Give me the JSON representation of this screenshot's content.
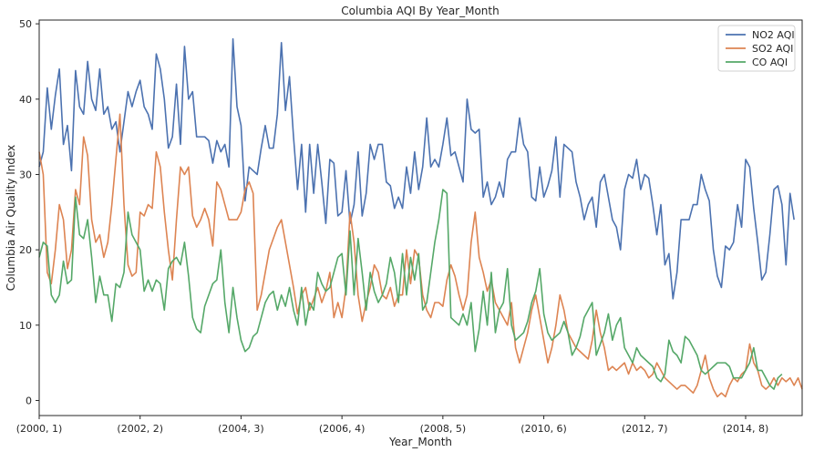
{
  "chart_data": {
    "type": "line",
    "title": "Columbia AQI By Year_Month",
    "xlabel": "Year_Month",
    "ylabel": "Columbia Air Quality Index",
    "ylim": [
      -2,
      50.5
    ],
    "yticks": [
      0,
      10,
      20,
      30,
      40,
      50
    ],
    "x_start_index": 0,
    "x_end_index": 189,
    "xticks": [
      {
        "index": 0,
        "label": "(2000, 1)"
      },
      {
        "index": 25,
        "label": "(2002, 2)"
      },
      {
        "index": 50,
        "label": "(2004, 3)"
      },
      {
        "index": 75,
        "label": "(2006, 4)"
      },
      {
        "index": 100,
        "label": "(2008, 5)"
      },
      {
        "index": 125,
        "label": "(2010, 6)"
      },
      {
        "index": 150,
        "label": "(2012, 7)"
      },
      {
        "index": 175,
        "label": "(2014, 8)"
      }
    ],
    "legend_position": "top-right",
    "grid": false,
    "series": [
      {
        "name": "NO2 AQI",
        "color": "#4c72b0",
        "values": [
          31,
          33,
          41.5,
          36,
          40.5,
          44,
          34,
          36.5,
          30.5,
          43.8,
          39,
          38,
          45,
          40,
          38.5,
          44,
          38,
          39,
          36,
          37,
          33,
          37,
          41,
          39,
          41,
          42.5,
          39,
          38,
          36,
          46,
          44,
          40,
          33.5,
          35,
          42,
          34,
          47,
          40,
          41,
          35,
          35,
          35,
          34.5,
          31.5,
          34.5,
          33,
          34,
          31,
          48,
          39,
          36.5,
          26.5,
          31,
          30.5,
          30,
          33.5,
          36.5,
          33.5,
          33.5,
          38,
          47.5,
          38.5,
          43,
          35,
          28,
          34,
          25,
          34,
          27.5,
          34,
          29,
          23.5,
          32,
          31.5,
          24.5,
          25,
          30.5,
          23.5,
          26,
          33,
          24.5,
          27.5,
          34,
          32,
          34,
          34,
          29,
          28.5,
          25.5,
          27,
          25.5,
          31,
          27.5,
          33,
          28,
          31,
          37.5,
          31,
          32,
          31,
          34,
          37.5,
          32.5,
          33,
          31,
          29,
          40,
          36,
          35.5,
          36,
          27,
          29,
          26,
          27,
          29,
          27,
          32,
          33,
          33,
          37.5,
          34,
          33,
          27,
          26.5,
          31,
          27,
          28.5,
          30.5,
          35,
          27,
          34,
          33.5,
          33,
          29,
          27,
          24,
          26,
          27,
          23,
          29,
          30,
          27,
          24,
          23,
          20,
          28,
          30,
          29.5,
          32,
          28,
          30,
          29.5,
          26,
          22,
          26,
          18,
          19.5,
          13.5,
          17,
          24,
          24,
          24,
          26,
          26,
          30,
          28,
          26.5,
          20,
          16.5,
          15,
          20.5,
          20,
          21,
          26,
          23,
          32,
          31,
          25.5,
          21,
          16,
          17,
          22,
          28,
          28.5,
          26,
          18,
          27.5,
          24
        ]
      },
      {
        "name": "SO2 AQI",
        "color": "#dd8452",
        "values": [
          33,
          30,
          17,
          15.5,
          20,
          26,
          24,
          17.5,
          20,
          28,
          26,
          35,
          32.5,
          24,
          21,
          22,
          19,
          21,
          26,
          32,
          38,
          26,
          18,
          16.5,
          17,
          25,
          24.5,
          26,
          25.5,
          33,
          31,
          25,
          20,
          16,
          24,
          31,
          30,
          31,
          24.5,
          23,
          24,
          25.5,
          24,
          20.5,
          29,
          28,
          26,
          24,
          24,
          24,
          25,
          28,
          29,
          27.5,
          12,
          14,
          17,
          20,
          21.5,
          23,
          24,
          21,
          18,
          15,
          11.5,
          14,
          15,
          12,
          13.5,
          15,
          13,
          14.5,
          17,
          11,
          13,
          11,
          15,
          25,
          21,
          14,
          10.5,
          13,
          15,
          18,
          17,
          14,
          13.5,
          15,
          12.5,
          14,
          14,
          20,
          15.5,
          20,
          19,
          14,
          12,
          11,
          13,
          13,
          12.5,
          16,
          18,
          16.5,
          14,
          12,
          14,
          21,
          25,
          19,
          17,
          14.5,
          16,
          13,
          12,
          11,
          10,
          13,
          7,
          5,
          7,
          9,
          12,
          14,
          11,
          8,
          5,
          7,
          10,
          14,
          12,
          9,
          8,
          7,
          6.5,
          6,
          5.5,
          8,
          12,
          9,
          7,
          4,
          4.5,
          4,
          4.5,
          5,
          3.5,
          5,
          4,
          4.5,
          4,
          3,
          3.5,
          5,
          4,
          3,
          2.5,
          2,
          1.5,
          2,
          2,
          1.5,
          1,
          2,
          4,
          6,
          3,
          1.5,
          0.5,
          1,
          0.5,
          2,
          3,
          2.5,
          3.5,
          4,
          7.5,
          5,
          4,
          2,
          1.5,
          2,
          3,
          2,
          3,
          2.5,
          3,
          2,
          3,
          1.5
        ]
      },
      {
        "name": "CO AQI",
        "color": "#55a868",
        "values": [
          19,
          21,
          20.5,
          14,
          13,
          14,
          18.5,
          15.5,
          16,
          27,
          22,
          21.5,
          24,
          19,
          13,
          16.5,
          14,
          14,
          10.5,
          15.5,
          15,
          17,
          25,
          22,
          21,
          20,
          14.5,
          16,
          14.5,
          16,
          15.5,
          12,
          17.5,
          18.5,
          19,
          18,
          21,
          16.5,
          11,
          9.5,
          9,
          12.5,
          14,
          15.5,
          16,
          20,
          13,
          9,
          15,
          11,
          8,
          6.5,
          7,
          8.5,
          9,
          11,
          13,
          14,
          14.5,
          12,
          14,
          12.5,
          15,
          12,
          10,
          15,
          10,
          13,
          12,
          17,
          15.5,
          14.5,
          15,
          17,
          19,
          19.5,
          14,
          22.5,
          14,
          21.5,
          17,
          12,
          17,
          14.5,
          13,
          14,
          15.5,
          19,
          17,
          13,
          19.5,
          14,
          19,
          16,
          19.5,
          12,
          13,
          17,
          21,
          24,
          28,
          27.5,
          11,
          10.5,
          10,
          11.5,
          10,
          13,
          6.5,
          9.5,
          14.5,
          10,
          17,
          9,
          12,
          13,
          17.5,
          10,
          8,
          8.5,
          9,
          10.5,
          13,
          14.5,
          17.5,
          11.5,
          9,
          8,
          8.5,
          9,
          10.5,
          9,
          6,
          7,
          8.5,
          11,
          12,
          13,
          6,
          7.5,
          9,
          11.5,
          8,
          10,
          11,
          7,
          6,
          5,
          7,
          6,
          5.5,
          5,
          4.5,
          3,
          2.5,
          3.5,
          8,
          6.5,
          6,
          5,
          8.5,
          8,
          7,
          6,
          4,
          3.5,
          4,
          4.5,
          5,
          5,
          5,
          4.5,
          3,
          3,
          3,
          4,
          5,
          7,
          4,
          4,
          3,
          2,
          1.5,
          3,
          3.5
        ]
      }
    ]
  }
}
